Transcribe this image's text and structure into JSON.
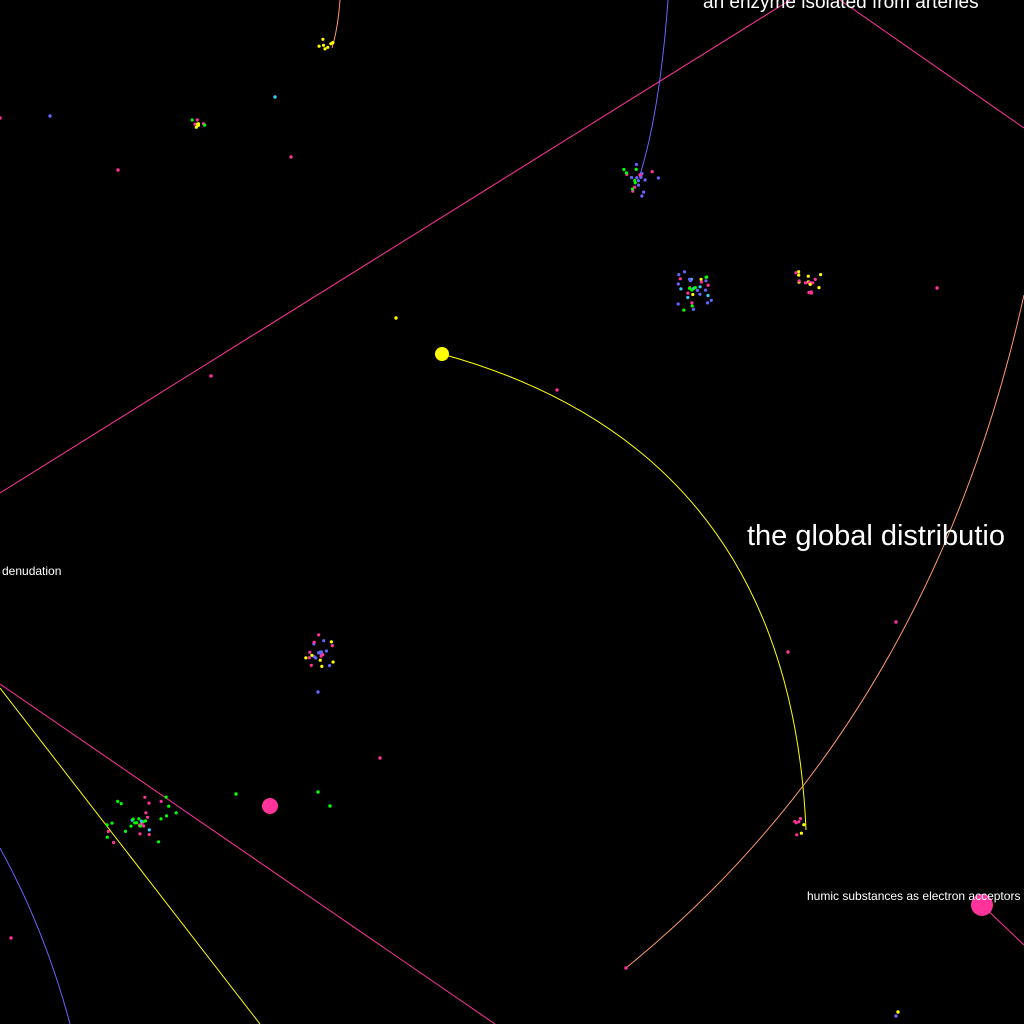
{
  "labels": {
    "top": "an enzyme isolated from arteries",
    "center": "the global distributio",
    "left": "denudation",
    "bottom_right": "humic substances as electron acceptors"
  },
  "colors": {
    "background": "#000000",
    "magenta": "#ff3399",
    "yellow": "#ffff00",
    "blue": "#6666ff",
    "green": "#00ff00",
    "cyan": "#33ccff",
    "orange": "#ff9966",
    "text": "#ffffff"
  }
}
